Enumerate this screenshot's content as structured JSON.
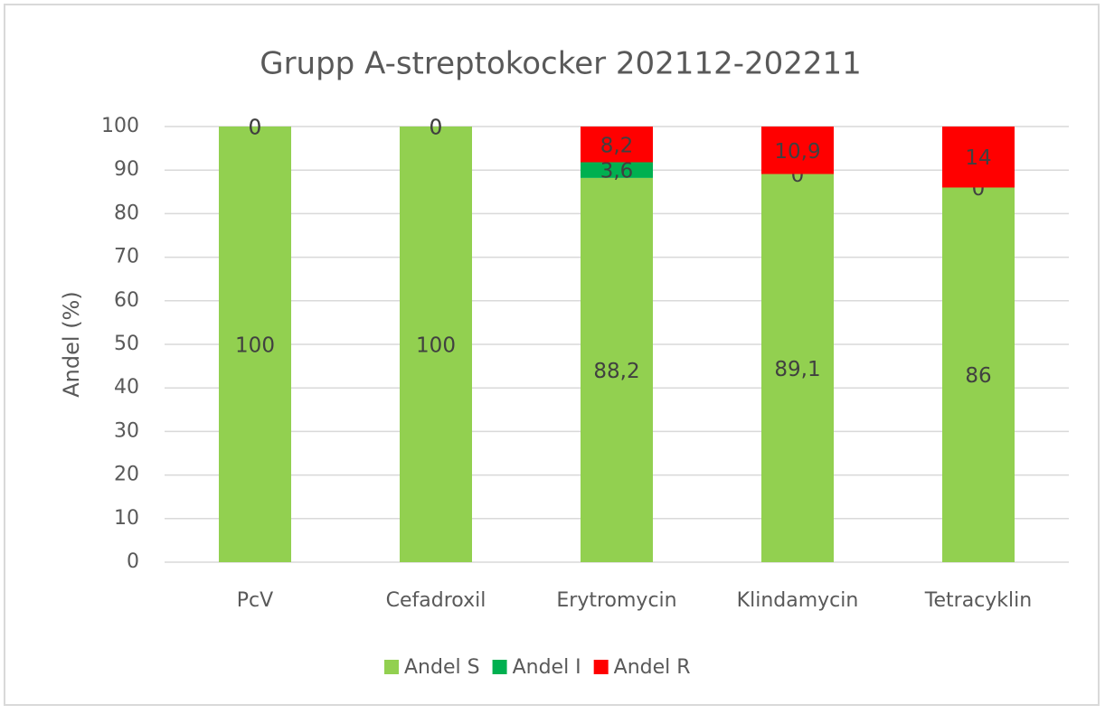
{
  "chart_data": {
    "type": "stacked_bar",
    "title": "Grupp A-streptokocker 202112-202211",
    "y_label": "Andel (%)",
    "categories": [
      "PcV",
      "Cefadroxil",
      "Erytromycin",
      "Klindamycin",
      "Tetracyklin"
    ],
    "series": [
      {
        "name": "Andel S",
        "color": "#92d050",
        "values": [
          100,
          100,
          88.2,
          89.1,
          86
        ],
        "value_labels": [
          "100",
          "100",
          "88,2",
          "89,1",
          "86"
        ]
      },
      {
        "name": "Andel I",
        "color": "#00b050",
        "values": [
          0,
          0,
          3.6,
          0,
          0
        ],
        "value_labels": [
          "0",
          "0",
          "3,6",
          "0",
          "0"
        ]
      },
      {
        "name": "Andel R",
        "color": "#ff0000",
        "values": [
          0,
          0,
          8.2,
          10.9,
          14
        ],
        "value_labels": [
          "0",
          "0",
          "8,2",
          "10,9",
          "14"
        ]
      }
    ],
    "ylim": [
      0,
      100
    ],
    "yticks": [
      0,
      10,
      20,
      30,
      40,
      50,
      60,
      70,
      80,
      90,
      100
    ],
    "grid": true,
    "legend": "bottom"
  }
}
